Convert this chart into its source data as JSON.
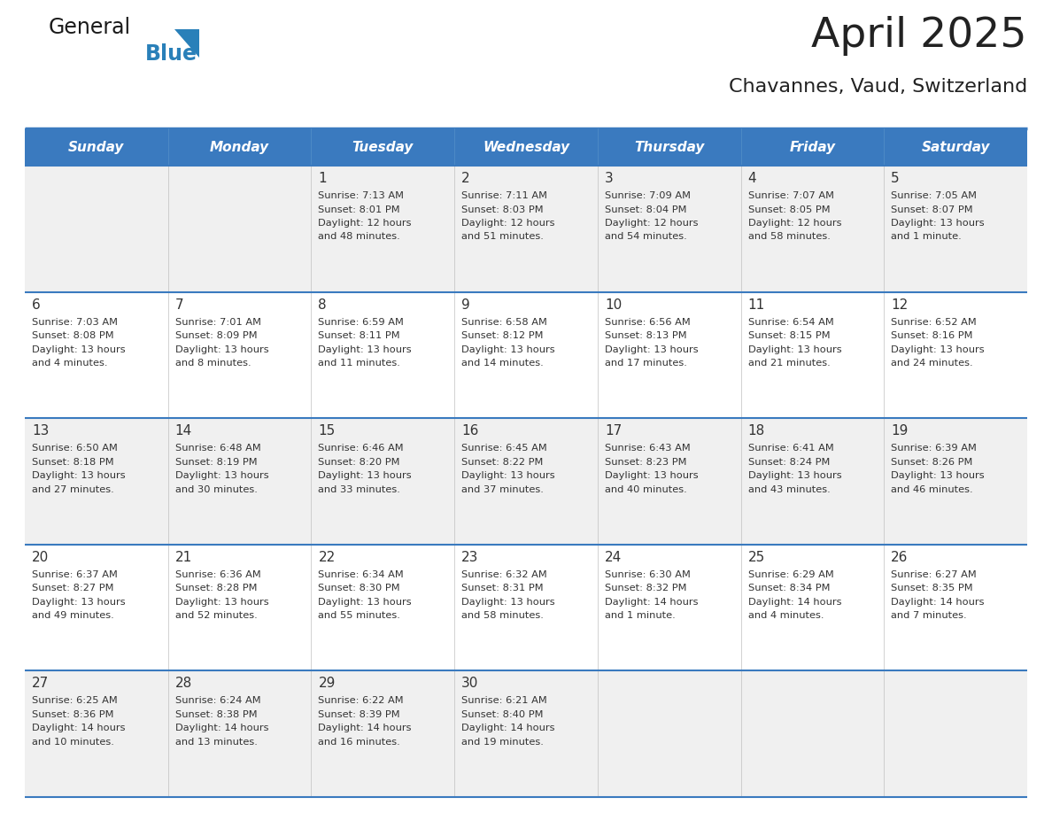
{
  "title": "April 2025",
  "subtitle": "Chavannes, Vaud, Switzerland",
  "days_of_week": [
    "Sunday",
    "Monday",
    "Tuesday",
    "Wednesday",
    "Thursday",
    "Friday",
    "Saturday"
  ],
  "header_bg": "#3a7abf",
  "header_text": "#ffffff",
  "cell_bg": "#ffffff",
  "row_alt_bg": "#f0f0f0",
  "border_color": "#3a7abf",
  "cell_border_color": "#c0c0c0",
  "text_color": "#333333",
  "title_color": "#222222",
  "calendar_data": [
    [
      {
        "day": "",
        "sunrise": "",
        "sunset": "",
        "daylight": ""
      },
      {
        "day": "",
        "sunrise": "",
        "sunset": "",
        "daylight": ""
      },
      {
        "day": "1",
        "sunrise": "7:13 AM",
        "sunset": "8:01 PM",
        "daylight": "12 hours and 48 minutes."
      },
      {
        "day": "2",
        "sunrise": "7:11 AM",
        "sunset": "8:03 PM",
        "daylight": "12 hours and 51 minutes."
      },
      {
        "day": "3",
        "sunrise": "7:09 AM",
        "sunset": "8:04 PM",
        "daylight": "12 hours and 54 minutes."
      },
      {
        "day": "4",
        "sunrise": "7:07 AM",
        "sunset": "8:05 PM",
        "daylight": "12 hours and 58 minutes."
      },
      {
        "day": "5",
        "sunrise": "7:05 AM",
        "sunset": "8:07 PM",
        "daylight": "13 hours and 1 minute."
      }
    ],
    [
      {
        "day": "6",
        "sunrise": "7:03 AM",
        "sunset": "8:08 PM",
        "daylight": "13 hours and 4 minutes."
      },
      {
        "day": "7",
        "sunrise": "7:01 AM",
        "sunset": "8:09 PM",
        "daylight": "13 hours and 8 minutes."
      },
      {
        "day": "8",
        "sunrise": "6:59 AM",
        "sunset": "8:11 PM",
        "daylight": "13 hours and 11 minutes."
      },
      {
        "day": "9",
        "sunrise": "6:58 AM",
        "sunset": "8:12 PM",
        "daylight": "13 hours and 14 minutes."
      },
      {
        "day": "10",
        "sunrise": "6:56 AM",
        "sunset": "8:13 PM",
        "daylight": "13 hours and 17 minutes."
      },
      {
        "day": "11",
        "sunrise": "6:54 AM",
        "sunset": "8:15 PM",
        "daylight": "13 hours and 21 minutes."
      },
      {
        "day": "12",
        "sunrise": "6:52 AM",
        "sunset": "8:16 PM",
        "daylight": "13 hours and 24 minutes."
      }
    ],
    [
      {
        "day": "13",
        "sunrise": "6:50 AM",
        "sunset": "8:18 PM",
        "daylight": "13 hours and 27 minutes."
      },
      {
        "day": "14",
        "sunrise": "6:48 AM",
        "sunset": "8:19 PM",
        "daylight": "13 hours and 30 minutes."
      },
      {
        "day": "15",
        "sunrise": "6:46 AM",
        "sunset": "8:20 PM",
        "daylight": "13 hours and 33 minutes."
      },
      {
        "day": "16",
        "sunrise": "6:45 AM",
        "sunset": "8:22 PM",
        "daylight": "13 hours and 37 minutes."
      },
      {
        "day": "17",
        "sunrise": "6:43 AM",
        "sunset": "8:23 PM",
        "daylight": "13 hours and 40 minutes."
      },
      {
        "day": "18",
        "sunrise": "6:41 AM",
        "sunset": "8:24 PM",
        "daylight": "13 hours and 43 minutes."
      },
      {
        "day": "19",
        "sunrise": "6:39 AM",
        "sunset": "8:26 PM",
        "daylight": "13 hours and 46 minutes."
      }
    ],
    [
      {
        "day": "20",
        "sunrise": "6:37 AM",
        "sunset": "8:27 PM",
        "daylight": "13 hours and 49 minutes."
      },
      {
        "day": "21",
        "sunrise": "6:36 AM",
        "sunset": "8:28 PM",
        "daylight": "13 hours and 52 minutes."
      },
      {
        "day": "22",
        "sunrise": "6:34 AM",
        "sunset": "8:30 PM",
        "daylight": "13 hours and 55 minutes."
      },
      {
        "day": "23",
        "sunrise": "6:32 AM",
        "sunset": "8:31 PM",
        "daylight": "13 hours and 58 minutes."
      },
      {
        "day": "24",
        "sunrise": "6:30 AM",
        "sunset": "8:32 PM",
        "daylight": "14 hours and 1 minute."
      },
      {
        "day": "25",
        "sunrise": "6:29 AM",
        "sunset": "8:34 PM",
        "daylight": "14 hours and 4 minutes."
      },
      {
        "day": "26",
        "sunrise": "6:27 AM",
        "sunset": "8:35 PM",
        "daylight": "14 hours and 7 minutes."
      }
    ],
    [
      {
        "day": "27",
        "sunrise": "6:25 AM",
        "sunset": "8:36 PM",
        "daylight": "14 hours and 10 minutes."
      },
      {
        "day": "28",
        "sunrise": "6:24 AM",
        "sunset": "8:38 PM",
        "daylight": "14 hours and 13 minutes."
      },
      {
        "day": "29",
        "sunrise": "6:22 AM",
        "sunset": "8:39 PM",
        "daylight": "14 hours and 16 minutes."
      },
      {
        "day": "30",
        "sunrise": "6:21 AM",
        "sunset": "8:40 PM",
        "daylight": "14 hours and 19 minutes."
      },
      {
        "day": "",
        "sunrise": "",
        "sunset": "",
        "daylight": ""
      },
      {
        "day": "",
        "sunrise": "",
        "sunset": "",
        "daylight": ""
      },
      {
        "day": "",
        "sunrise": "",
        "sunset": "",
        "daylight": ""
      }
    ]
  ],
  "logo_text_general": "General",
  "logo_text_blue": "Blue",
  "logo_color_general": "#1a1a1a",
  "logo_color_blue": "#2980b9",
  "logo_triangle_color": "#2980b9"
}
